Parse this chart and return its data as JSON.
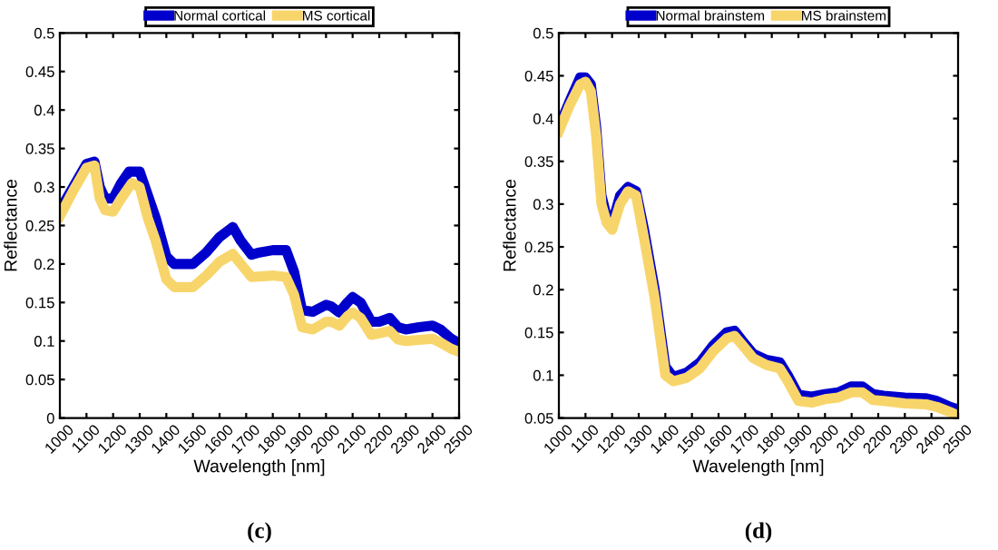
{
  "chart_data": [
    {
      "type": "line",
      "title": "(c)",
      "xlabel": "Wavelength [nm]",
      "ylabel": "Reflectance",
      "legend": "top",
      "grid": false,
      "xlim": [
        1000,
        2500
      ],
      "xticks": [
        1000,
        1100,
        1200,
        1300,
        1400,
        1500,
        1600,
        1700,
        1800,
        1900,
        2000,
        2100,
        2200,
        2300,
        2400,
        2500
      ],
      "ylim": [
        0,
        0.5
      ],
      "yticks": [
        0,
        0.05,
        0.1,
        0.15,
        0.2,
        0.25,
        0.3,
        0.35,
        0.4,
        0.45,
        0.5
      ],
      "series": [
        {
          "name": "Normal cortical",
          "color": "#0000cc",
          "x": [
            1000,
            1050,
            1100,
            1130,
            1150,
            1170,
            1200,
            1230,
            1260,
            1300,
            1330,
            1360,
            1400,
            1430,
            1470,
            1500,
            1550,
            1600,
            1650,
            1680,
            1720,
            1750,
            1800,
            1850,
            1880,
            1910,
            1950,
            2000,
            2020,
            2050,
            2080,
            2100,
            2130,
            2170,
            2200,
            2240,
            2270,
            2300,
            2350,
            2400,
            2430,
            2470,
            2500
          ],
          "values": [
            0.27,
            0.3,
            0.33,
            0.333,
            0.3,
            0.285,
            0.285,
            0.305,
            0.32,
            0.32,
            0.29,
            0.26,
            0.21,
            0.2,
            0.2,
            0.2,
            0.215,
            0.235,
            0.248,
            0.23,
            0.212,
            0.215,
            0.218,
            0.218,
            0.19,
            0.14,
            0.138,
            0.147,
            0.145,
            0.137,
            0.15,
            0.157,
            0.15,
            0.125,
            0.125,
            0.13,
            0.118,
            0.115,
            0.118,
            0.12,
            0.115,
            0.103,
            0.097
          ]
        },
        {
          "name": "MS cortical",
          "color": "#f8d56b",
          "x": [
            1000,
            1050,
            1100,
            1130,
            1150,
            1170,
            1200,
            1230,
            1270,
            1300,
            1330,
            1360,
            1400,
            1430,
            1500,
            1550,
            1600,
            1650,
            1680,
            1720,
            1800,
            1850,
            1880,
            1910,
            1950,
            2000,
            2020,
            2050,
            2080,
            2100,
            2130,
            2170,
            2200,
            2240,
            2270,
            2300,
            2400,
            2430,
            2470,
            2500
          ],
          "values": [
            0.262,
            0.295,
            0.325,
            0.328,
            0.285,
            0.27,
            0.268,
            0.285,
            0.305,
            0.3,
            0.26,
            0.23,
            0.18,
            0.17,
            0.17,
            0.185,
            0.203,
            0.213,
            0.2,
            0.183,
            0.185,
            0.183,
            0.16,
            0.118,
            0.115,
            0.125,
            0.125,
            0.12,
            0.132,
            0.137,
            0.13,
            0.108,
            0.11,
            0.113,
            0.102,
            0.1,
            0.103,
            0.098,
            0.09,
            0.086
          ]
        }
      ]
    },
    {
      "type": "line",
      "title": "(d)",
      "xlabel": "Wavelength [nm]",
      "ylabel": "Reflectance",
      "legend": "top",
      "grid": false,
      "xlim": [
        1000,
        2500
      ],
      "xticks": [
        1000,
        1100,
        1200,
        1300,
        1400,
        1500,
        1600,
        1700,
        1800,
        1900,
        2000,
        2100,
        2200,
        2300,
        2400,
        2500
      ],
      "ylim": [
        0.05,
        0.5
      ],
      "yticks": [
        0.05,
        0.1,
        0.15,
        0.2,
        0.25,
        0.3,
        0.35,
        0.4,
        0.45,
        0.5
      ],
      "series": [
        {
          "name": "Normal brainstem",
          "color": "#0000cc",
          "x": [
            1000,
            1040,
            1080,
            1100,
            1120,
            1140,
            1160,
            1180,
            1200,
            1230,
            1260,
            1290,
            1320,
            1360,
            1400,
            1430,
            1480,
            1530,
            1580,
            1630,
            1660,
            1690,
            1730,
            1780,
            1830,
            1860,
            1900,
            1950,
            2000,
            2050,
            2100,
            2140,
            2180,
            2220,
            2300,
            2380,
            2420,
            2470,
            2500
          ],
          "values": [
            0.39,
            0.42,
            0.448,
            0.448,
            0.44,
            0.39,
            0.31,
            0.285,
            0.277,
            0.31,
            0.32,
            0.315,
            0.27,
            0.2,
            0.11,
            0.098,
            0.103,
            0.115,
            0.135,
            0.15,
            0.152,
            0.14,
            0.125,
            0.118,
            0.115,
            0.1,
            0.077,
            0.075,
            0.078,
            0.08,
            0.087,
            0.087,
            0.078,
            0.076,
            0.074,
            0.073,
            0.07,
            0.063,
            0.06
          ]
        },
        {
          "name": "MS brainstem",
          "color": "#f8d56b",
          "x": [
            1000,
            1040,
            1080,
            1100,
            1120,
            1140,
            1160,
            1180,
            1200,
            1230,
            1260,
            1290,
            1320,
            1360,
            1400,
            1430,
            1480,
            1530,
            1580,
            1630,
            1660,
            1690,
            1730,
            1780,
            1830,
            1860,
            1900,
            1950,
            2000,
            2050,
            2100,
            2140,
            2180,
            2220,
            2300,
            2380,
            2420,
            2470,
            2500
          ],
          "values": [
            0.385,
            0.415,
            0.44,
            0.443,
            0.432,
            0.38,
            0.3,
            0.278,
            0.27,
            0.3,
            0.315,
            0.31,
            0.26,
            0.19,
            0.1,
            0.093,
            0.097,
            0.108,
            0.128,
            0.143,
            0.146,
            0.135,
            0.12,
            0.112,
            0.108,
            0.093,
            0.07,
            0.068,
            0.072,
            0.074,
            0.08,
            0.08,
            0.071,
            0.07,
            0.067,
            0.066,
            0.063,
            0.057,
            0.053
          ]
        }
      ]
    }
  ]
}
